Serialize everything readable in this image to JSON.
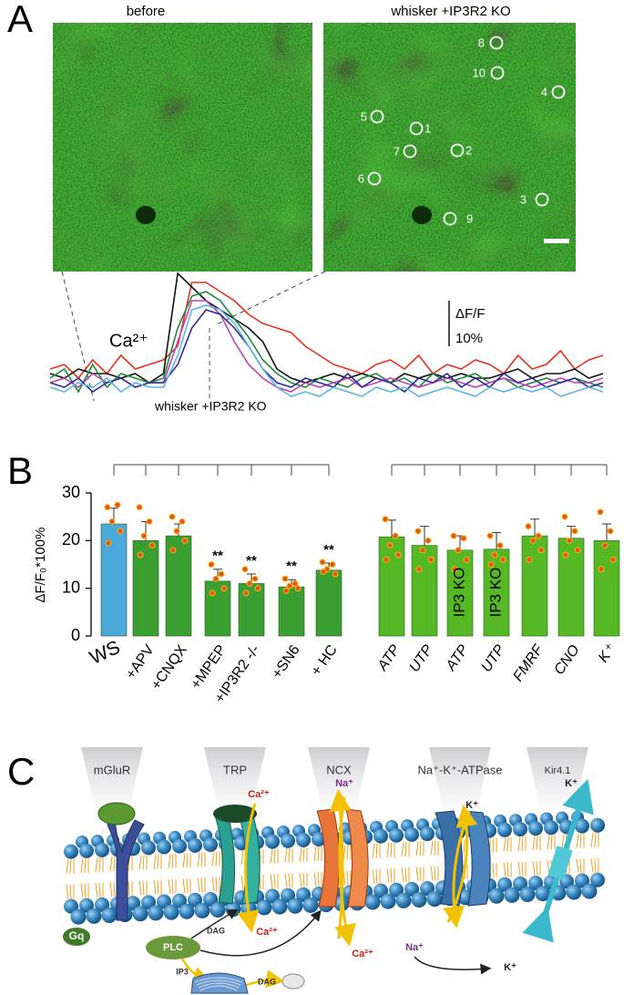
{
  "panel_a": {
    "letter": "A",
    "titles": [
      "before",
      "whisker +IP3R2 KO"
    ],
    "rois": [
      "8",
      "10",
      "4",
      "5",
      "1",
      "7",
      "2",
      "6",
      "3",
      "9"
    ],
    "stimulus_label": "whisker +IP3R2 KO"
  },
  "chart_data": [
    {
      "type": "line",
      "label": "Ca²⁺",
      "scale_label": "ΔF/F",
      "scale_bar": {
        "value": 10,
        "label": "10%"
      },
      "ylim": [
        -4,
        28
      ],
      "series": [
        {
          "color": "#e8321e",
          "values": [
            3,
            4,
            1,
            5,
            2,
            6,
            3,
            4,
            5,
            8,
            22,
            22,
            20,
            18,
            15,
            13,
            12,
            11,
            8,
            6,
            4,
            3,
            2,
            4,
            5,
            3,
            6,
            2,
            4,
            3,
            5,
            4,
            2,
            6,
            3,
            4,
            7,
            3,
            5,
            6
          ]
        },
        {
          "color": "#111111",
          "values": [
            2,
            1,
            3,
            2,
            2,
            1,
            2,
            0,
            2,
            24,
            21,
            18,
            16,
            14,
            12,
            9,
            3,
            1,
            0,
            1,
            2,
            1,
            2,
            1,
            0,
            2,
            1,
            2,
            1,
            2,
            1,
            1,
            2,
            3,
            1,
            2,
            2,
            3,
            1,
            2
          ]
        },
        {
          "color": "#1f8a3a",
          "values": [
            1,
            3,
            -2,
            4,
            -1,
            2,
            1,
            0,
            1,
            12,
            19,
            20,
            18,
            14,
            10,
            5,
            2,
            0,
            -1,
            1,
            0,
            -1,
            1,
            2,
            0,
            1,
            -1,
            2,
            0,
            1,
            2,
            0,
            1,
            -1,
            0,
            1,
            0,
            1,
            0,
            -1
          ]
        },
        {
          "color": "#c040b8",
          "values": [
            0,
            1,
            -1,
            2,
            0,
            1,
            -1,
            0,
            0,
            9,
            18,
            18,
            15,
            9,
            4,
            1,
            -1,
            -2,
            0,
            -1,
            0,
            1,
            -1,
            0,
            1,
            0,
            -1,
            0,
            1,
            0,
            -1,
            0,
            1,
            0,
            -1,
            0,
            1,
            0,
            0,
            1
          ]
        },
        {
          "color": "#2a2a9a",
          "values": [
            0,
            -1,
            1,
            -2,
            0,
            1,
            -1,
            0,
            0,
            4,
            12,
            16,
            15,
            12,
            8,
            3,
            0,
            -1,
            1,
            0,
            -1,
            2,
            -1,
            1,
            0,
            -2,
            1,
            0,
            2,
            -1,
            1,
            -1,
            2,
            0,
            1,
            -1,
            0,
            1,
            -1,
            0
          ]
        },
        {
          "color": "#5ab8e0",
          "values": [
            -1,
            -2,
            0,
            -1,
            1,
            -2,
            0,
            -1,
            -1,
            6,
            16,
            17,
            16,
            13,
            8,
            3,
            -1,
            -3,
            -2,
            -3,
            -1,
            -2,
            -3,
            -1,
            -2,
            -1,
            -3,
            -2,
            -1,
            -2,
            -3,
            -1,
            -2,
            -1,
            -2,
            -1,
            -3,
            -2,
            -1,
            -2
          ]
        }
      ]
    },
    {
      "type": "bar",
      "letter": "B",
      "ylabel": "ΔF/F₀*100%",
      "categories": [
        "WS",
        "+APV",
        "+CNQX",
        "+MPEP",
        "+IP3R2 -/-",
        "+SN6",
        "+ HC",
        "ATP",
        "UTP",
        "ATP",
        "UTP",
        "FMRF",
        "CNO",
        "K⁺"
      ],
      "values": [
        23.5,
        20,
        21,
        11.5,
        11,
        10.3,
        13.8,
        20.8,
        19,
        18,
        18.2,
        21,
        20.5,
        20
      ],
      "errors": [
        3.3,
        4,
        2.5,
        2.5,
        2,
        1.5,
        1.5,
        3.5,
        4,
        3,
        3.5,
        3.5,
        2.5,
        3.5
      ],
      "points": [
        [
          27,
          27.5,
          24,
          22,
          19.5
        ],
        [
          27,
          24,
          21,
          19,
          17
        ],
        [
          25,
          24,
          22,
          20,
          18
        ],
        [
          15,
          13,
          12,
          10,
          9
        ],
        [
          14,
          12,
          11,
          10,
          9
        ],
        [
          12,
          11,
          10.5,
          10,
          9.5
        ],
        [
          15.5,
          15,
          14,
          13,
          13.5
        ],
        [
          24.5,
          21,
          19,
          17,
          16
        ],
        [
          22,
          20,
          18,
          16,
          14
        ],
        [
          21,
          20.5,
          18,
          16,
          14
        ],
        [
          21,
          19,
          17,
          16,
          15
        ],
        [
          23,
          21,
          20,
          18,
          16
        ],
        [
          25,
          22,
          20,
          18,
          17
        ],
        [
          26,
          22,
          19,
          16,
          14
        ]
      ],
      "colors": [
        "#4aa8d8",
        "#3a9e30",
        "#3a9e30",
        "#3a9e30",
        "#3a9e30",
        "#3a9e30",
        "#3a9e30",
        "#55b824",
        "#55b824",
        "#55b824",
        "#55b824",
        "#55b824",
        "#55b824",
        "#55b824"
      ],
      "point_color": "#e8502a",
      "significance": [
        null,
        null,
        null,
        "**",
        "**",
        "**",
        "**",
        null,
        null,
        null,
        null,
        null,
        null,
        null
      ],
      "bar_labels": [
        null,
        null,
        null,
        null,
        null,
        null,
        null,
        null,
        null,
        "IP3 KO",
        "IP3 KO",
        null,
        null,
        null
      ],
      "ylim": [
        0,
        30
      ],
      "yticks": [
        0,
        10,
        20,
        30
      ]
    }
  ],
  "panel_c": {
    "letter": "C",
    "proteins": [
      "mGluR",
      "TRP",
      "NCX",
      "Na⁺-K⁺-ATPase",
      "Kir4.1"
    ],
    "ions": [
      "Ca²⁺",
      "Na⁺",
      "K⁺",
      "K⁺",
      "Ca²⁺",
      "Ca²⁺",
      "Na⁺",
      "K⁺"
    ],
    "signaling": [
      "Gq",
      "PLC",
      "DAG",
      "DAG",
      "IP3"
    ]
  }
}
